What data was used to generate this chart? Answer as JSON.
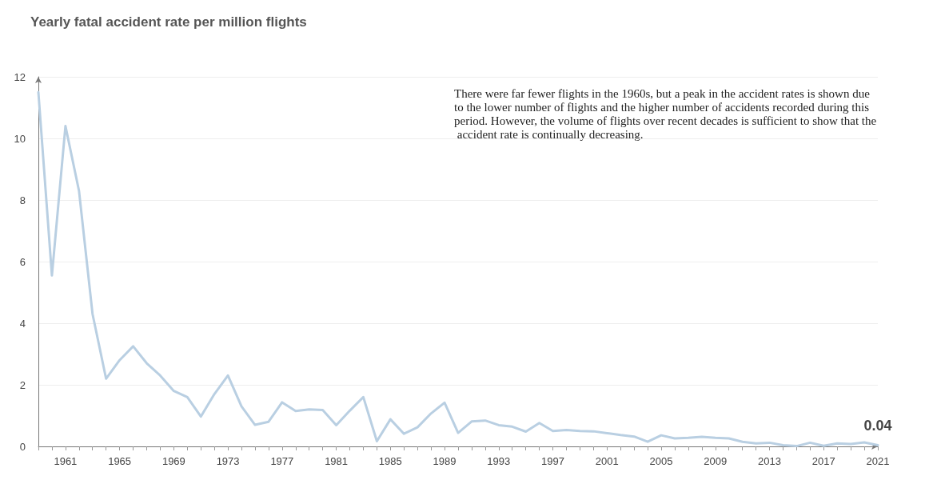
{
  "chart_data": {
    "type": "line",
    "title": "Yearly fatal accident rate per million flights",
    "categories": [
      null,
      null,
      "1961",
      null,
      null,
      null,
      "1965",
      null,
      null,
      null,
      "1969",
      null,
      null,
      null,
      "1973",
      null,
      null,
      null,
      "1977",
      null,
      null,
      null,
      "1981",
      null,
      null,
      null,
      "1985",
      null,
      null,
      null,
      "1989",
      null,
      null,
      null,
      "1993",
      null,
      null,
      null,
      "1997",
      null,
      null,
      null,
      "2001",
      null,
      null,
      null,
      "2005",
      null,
      null,
      null,
      "2009",
      null,
      null,
      null,
      "2013",
      null,
      null,
      null,
      "2017",
      null,
      null,
      null,
      "2021"
    ],
    "series": [
      {
        "color": "#b9cfe2",
        "values": [
          11.5,
          5.55,
          10.4,
          8.3,
          4.3,
          2.2,
          2.8,
          3.25,
          2.7,
          2.3,
          1.8,
          1.6,
          0.97,
          1.7,
          2.3,
          1.3,
          0.7,
          0.8,
          1.43,
          1.15,
          1.2,
          1.18,
          0.69,
          1.16,
          1.6,
          0.17,
          0.88,
          0.41,
          0.62,
          1.07,
          1.42,
          0.44,
          0.81,
          0.84,
          0.69,
          0.64,
          0.48,
          0.76,
          0.5,
          0.53,
          0.5,
          0.49,
          0.43,
          0.37,
          0.32,
          0.15,
          0.36,
          0.26,
          0.28,
          0.31,
          0.28,
          0.26,
          0.15,
          0.1,
          0.12,
          0.04,
          0.01,
          0.12,
          0.02,
          0.1,
          0.08,
          0.13,
          0.04
        ]
      }
    ],
    "ylim": [
      0,
      12
    ],
    "yticks": [
      0,
      2,
      4,
      6,
      8,
      10,
      12
    ],
    "grid": "y",
    "marker": "none",
    "line_style": "solid",
    "annotations": [
      "There were far fewer flights in the 1960s, but a peak in the accident rates is shown due to the lower number of flights and the higher number of accidents recorded during this period. However, the volume of flights over recent decades is sufficient to show that the accident rate is continually decreasing.",
      {
        "text": "0.04",
        "x": "2021",
        "y": 0.04
      }
    ]
  }
}
